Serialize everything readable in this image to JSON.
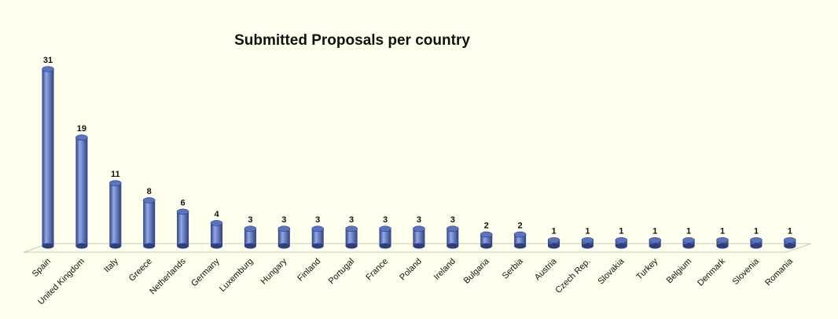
{
  "chart_data": {
    "type": "bar",
    "title": "Submitted Proposals per country",
    "xlabel": "",
    "ylabel": "",
    "categories": [
      "Spain",
      "United Kingdom",
      "Italy",
      "Greece",
      "Netherlands",
      "Germany",
      "Luxemburg",
      "Hungary",
      "Finland",
      "Portugal",
      "France",
      "Poland",
      "Ireland",
      "Bulgaria",
      "Serbia",
      "Austria",
      "Czech Rep.",
      "Slovakia",
      "Turkey",
      "Belgium",
      "Denmark",
      "Slovenia",
      "Romania"
    ],
    "values": [
      31,
      19,
      11,
      8,
      6,
      4,
      3,
      3,
      3,
      3,
      3,
      3,
      3,
      2,
      2,
      1,
      1,
      1,
      1,
      1,
      1,
      1,
      1
    ],
    "ylim": [
      0,
      31
    ],
    "grid": false,
    "legend": "none",
    "bar_color": "#5a74c4",
    "bar_highlight": "#93a8e8",
    "bar_shadow": "#2e3f7e",
    "background": "#ffffee"
  }
}
